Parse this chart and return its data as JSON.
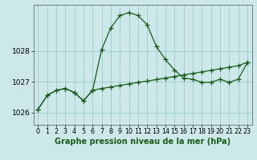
{
  "title": "Graphe pression niveau de la mer (hPa)",
  "background_color": "#cce8e8",
  "grid_color": "#99cccc",
  "line_color": "#1a5c1a",
  "xlim": [
    -0.5,
    23.5
  ],
  "ylim": [
    1025.6,
    1029.5
  ],
  "yticks": [
    1026,
    1027,
    1028
  ],
  "xticks": [
    0,
    1,
    2,
    3,
    4,
    5,
    6,
    7,
    8,
    9,
    10,
    11,
    12,
    13,
    14,
    15,
    16,
    17,
    18,
    19,
    20,
    21,
    22,
    23
  ],
  "series1_x": [
    0,
    1,
    2,
    3,
    4,
    5,
    6,
    7,
    8,
    9,
    10,
    11,
    12,
    13,
    14,
    15,
    16,
    17,
    18,
    19,
    20,
    21,
    22,
    23
  ],
  "series1_y": [
    1026.1,
    1026.55,
    1026.72,
    1026.78,
    1026.65,
    1026.38,
    1026.72,
    1028.05,
    1028.75,
    1029.15,
    1029.25,
    1029.15,
    1028.85,
    1028.15,
    1027.72,
    1027.38,
    1027.12,
    1027.08,
    1026.98,
    1026.98,
    1027.08,
    1026.98,
    1027.08,
    1027.62
  ],
  "series2_x": [
    0,
    1,
    2,
    3,
    4,
    5,
    6,
    7,
    8,
    9,
    10,
    11,
    12,
    13,
    14,
    15,
    16,
    17,
    18,
    19,
    20,
    21,
    22,
    23
  ],
  "series2_y": [
    1026.1,
    1026.55,
    1026.72,
    1026.78,
    1026.65,
    1026.38,
    1026.72,
    1026.78,
    1026.83,
    1026.88,
    1026.93,
    1026.98,
    1027.02,
    1027.07,
    1027.12,
    1027.17,
    1027.22,
    1027.27,
    1027.32,
    1027.37,
    1027.42,
    1027.47,
    1027.52,
    1027.63
  ],
  "xlabel_fontsize": 7.0,
  "ytick_fontsize": 6.5,
  "xtick_fontsize": 5.8
}
